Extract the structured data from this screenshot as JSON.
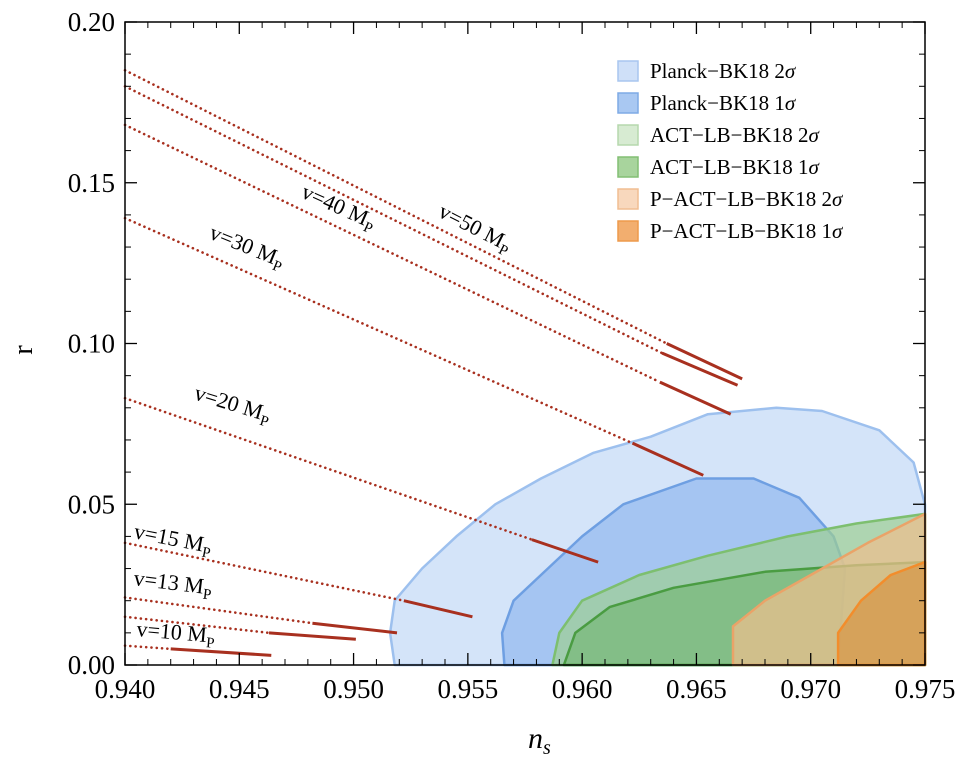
{
  "chart_data": {
    "type": "area",
    "xlabel": "n",
    "xlabel_sub": "s",
    "ylabel": "r",
    "xlim": [
      0.94,
      0.975
    ],
    "ylim": [
      0.0,
      0.2
    ],
    "x_ticks": [
      "0.940",
      "0.945",
      "0.950",
      "0.955",
      "0.960",
      "0.965",
      "0.970",
      "0.975"
    ],
    "y_ticks": [
      "0.00",
      "0.05",
      "0.10",
      "0.15",
      "0.20"
    ],
    "legend": [
      {
        "text": "Planck−BK18 2",
        "sym": "σ",
        "fill": "#cfe0f8",
        "stroke": "#a9c6ef"
      },
      {
        "text": "Planck−BK18 1",
        "sym": "σ",
        "fill": "#a9c8f2",
        "stroke": "#7eaae5"
      },
      {
        "text": "ACT−LB−BK18 2",
        "sym": "σ",
        "fill": "#d7ebd2",
        "stroke": "#b6d8ad"
      },
      {
        "text": "ACT−LB−BK18 1",
        "sym": "σ",
        "fill": "#a8d49d",
        "stroke": "#82bf74"
      },
      {
        "text": "P−ACT−LB−BK18 2",
        "sym": "σ",
        "fill": "#f8d8bd",
        "stroke": "#f1bd92"
      },
      {
        "text": "P−ACT−LB−BK18 1",
        "sym": "σ",
        "fill": "#f2ae6f",
        "stroke": "#ee9a4c"
      }
    ],
    "series": [
      {
        "fill": "#c6dbf7",
        "stroke": "#9dc0ee",
        "opacity": 0.75,
        "points": [
          [
            0.9518,
            0.0
          ],
          [
            0.9516,
            0.01
          ],
          [
            0.9518,
            0.02
          ],
          [
            0.953,
            0.03
          ],
          [
            0.9545,
            0.04
          ],
          [
            0.9562,
            0.05
          ],
          [
            0.9582,
            0.058
          ],
          [
            0.9605,
            0.066
          ],
          [
            0.963,
            0.071
          ],
          [
            0.9655,
            0.078
          ],
          [
            0.9685,
            0.08
          ],
          [
            0.9705,
            0.079
          ],
          [
            0.973,
            0.073
          ],
          [
            0.9745,
            0.063
          ],
          [
            0.9752,
            0.05
          ],
          [
            0.9752,
            0.0
          ]
        ]
      },
      {
        "fill": "#98bdf0",
        "stroke": "#6e9fe2",
        "opacity": 0.8,
        "points": [
          [
            0.9566,
            0.0
          ],
          [
            0.9565,
            0.01
          ],
          [
            0.957,
            0.02
          ],
          [
            0.9585,
            0.03
          ],
          [
            0.96,
            0.04
          ],
          [
            0.9618,
            0.05
          ],
          [
            0.965,
            0.058
          ],
          [
            0.9675,
            0.058
          ],
          [
            0.9695,
            0.052
          ],
          [
            0.971,
            0.04
          ],
          [
            0.9715,
            0.03
          ],
          [
            0.9713,
            0.01
          ],
          [
            0.9712,
            0.0
          ]
        ]
      },
      {
        "fill": "#9ecf93",
        "stroke": "#7dbf6f",
        "opacity": 0.7,
        "points": [
          [
            0.9587,
            0.0
          ],
          [
            0.959,
            0.01
          ],
          [
            0.96,
            0.02
          ],
          [
            0.9625,
            0.028
          ],
          [
            0.9655,
            0.034
          ],
          [
            0.969,
            0.04
          ],
          [
            0.972,
            0.044
          ],
          [
            0.9752,
            0.047
          ],
          [
            0.9752,
            0.0
          ]
        ]
      },
      {
        "fill": "#5fae56",
        "stroke": "#4a9c42",
        "opacity": 0.45,
        "points": [
          [
            0.9592,
            0.0
          ],
          [
            0.9597,
            0.01
          ],
          [
            0.9612,
            0.018
          ],
          [
            0.964,
            0.024
          ],
          [
            0.968,
            0.029
          ],
          [
            0.972,
            0.031
          ],
          [
            0.9752,
            0.032
          ],
          [
            0.9752,
            0.0
          ]
        ]
      },
      {
        "fill": "#efbf8e",
        "stroke": "#eaa368",
        "opacity": 0.72,
        "points": [
          [
            0.9666,
            0.0
          ],
          [
            0.9666,
            0.012
          ],
          [
            0.968,
            0.02
          ],
          [
            0.97,
            0.028
          ],
          [
            0.9725,
            0.038
          ],
          [
            0.9752,
            0.047
          ],
          [
            0.9752,
            0.0
          ]
        ]
      },
      {
        "fill": "#d79a4d",
        "stroke": "#f28d2c",
        "opacity": 0.8,
        "points": [
          [
            0.9712,
            0.0
          ],
          [
            0.9712,
            0.01
          ],
          [
            0.9722,
            0.02
          ],
          [
            0.9735,
            0.028
          ],
          [
            0.9752,
            0.032
          ],
          [
            0.9752,
            0.0
          ]
        ]
      }
    ],
    "prediction_lines": [
      {
        "label": "v=50 M",
        "sub": "P",
        "dotted": [
          [
            0.94,
            0.185
          ],
          [
            0.9637,
            0.1
          ]
        ],
        "solid": [
          [
            0.9637,
            0.1
          ],
          [
            0.967,
            0.089
          ]
        ]
      },
      {
        "label": "v=40 M",
        "sub": "P",
        "dotted": [
          [
            0.94,
            0.18
          ],
          [
            0.9635,
            0.097
          ]
        ],
        "solid": [
          [
            0.9635,
            0.097
          ],
          [
            0.9668,
            0.087
          ]
        ]
      },
      {
        "label": "",
        "sub": "",
        "dotted": [
          [
            0.94,
            0.168
          ],
          [
            0.9634,
            0.088
          ]
        ],
        "solid": [
          [
            0.9634,
            0.088
          ],
          [
            0.9665,
            0.078
          ]
        ]
      },
      {
        "label": "v=30 M",
        "sub": "P",
        "dotted": [
          [
            0.94,
            0.139
          ],
          [
            0.9622,
            0.069
          ]
        ],
        "solid": [
          [
            0.9622,
            0.069
          ],
          [
            0.9653,
            0.059
          ]
        ]
      },
      {
        "label": "v=20 M",
        "sub": "P",
        "dotted": [
          [
            0.94,
            0.083
          ],
          [
            0.9578,
            0.039
          ]
        ],
        "solid": [
          [
            0.9578,
            0.039
          ],
          [
            0.9607,
            0.032
          ]
        ]
      },
      {
        "label": "v=15 M",
        "sub": "P",
        "dotted": [
          [
            0.94,
            0.038
          ],
          [
            0.9522,
            0.02
          ]
        ],
        "solid": [
          [
            0.9522,
            0.02
          ],
          [
            0.9552,
            0.015
          ]
        ]
      },
      {
        "label": "v=13 M",
        "sub": "P",
        "dotted": [
          [
            0.94,
            0.021
          ],
          [
            0.9482,
            0.013
          ]
        ],
        "solid": [
          [
            0.9482,
            0.013
          ],
          [
            0.9519,
            0.01
          ]
        ]
      },
      {
        "label": "",
        "sub": "",
        "dotted": [
          [
            0.94,
            0.015
          ],
          [
            0.9463,
            0.01
          ]
        ],
        "solid": [
          [
            0.9463,
            0.01
          ],
          [
            0.9501,
            0.008
          ]
        ]
      },
      {
        "label": "v=10 M",
        "sub": "P",
        "dotted": [
          [
            0.94,
            0.006
          ],
          [
            0.942,
            0.005
          ]
        ],
        "solid": [
          [
            0.942,
            0.005
          ],
          [
            0.9464,
            0.003
          ]
        ]
      }
    ],
    "line_color": "#a8301f",
    "grid": false,
    "legend_position": "top-right"
  }
}
